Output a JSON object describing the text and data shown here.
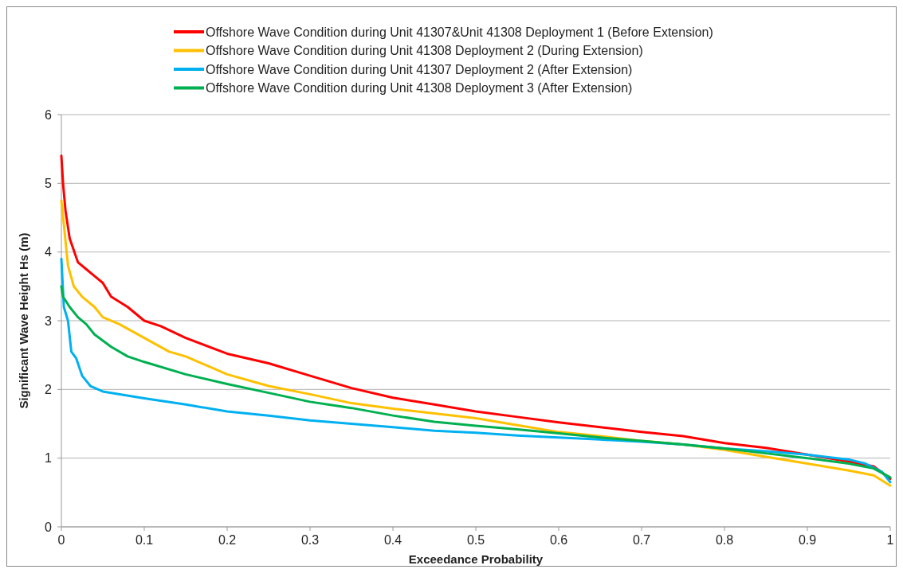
{
  "chart_data": {
    "type": "line",
    "xlabel": "Exceedance Probability",
    "ylabel": "Significant Wave Height Hs (m)",
    "xlim": [
      0,
      1
    ],
    "xticks": [
      0,
      0.1,
      0.2,
      0.3,
      0.4,
      0.5,
      0.6,
      0.7,
      0.8,
      0.9,
      1
    ],
    "ylim": [
      0,
      6
    ],
    "yticks": [
      0,
      1,
      2,
      3,
      4,
      5,
      6
    ],
    "grid": "y",
    "legend": "top",
    "marker": "none",
    "line_style": "solid",
    "series": [
      {
        "name": "Offshore Wave Condition during Unit 41307&Unit 41308 Deployment 1 (Before Extension)",
        "color": "#ff0000",
        "x": [
          0,
          0.002,
          0.005,
          0.01,
          0.02,
          0.03,
          0.04,
          0.05,
          0.06,
          0.08,
          0.1,
          0.12,
          0.15,
          0.2,
          0.25,
          0.3,
          0.35,
          0.4,
          0.45,
          0.5,
          0.55,
          0.6,
          0.65,
          0.7,
          0.75,
          0.8,
          0.85,
          0.9,
          0.95,
          0.98,
          1
        ],
        "values": [
          5.4,
          5.0,
          4.6,
          4.2,
          3.85,
          3.75,
          3.65,
          3.55,
          3.35,
          3.2,
          3.0,
          2.92,
          2.75,
          2.52,
          2.38,
          2.2,
          2.02,
          1.88,
          1.78,
          1.68,
          1.6,
          1.52,
          1.45,
          1.38,
          1.32,
          1.22,
          1.15,
          1.05,
          0.95,
          0.88,
          0.7
        ]
      },
      {
        "name": "Offshore Wave Condition during Unit 41308 Deployment 2 (During Extension)",
        "color": "#ffc000",
        "x": [
          0,
          0.003,
          0.008,
          0.015,
          0.025,
          0.04,
          0.05,
          0.07,
          0.1,
          0.13,
          0.15,
          0.2,
          0.25,
          0.3,
          0.35,
          0.4,
          0.45,
          0.5,
          0.55,
          0.6,
          0.65,
          0.7,
          0.75,
          0.8,
          0.85,
          0.9,
          0.95,
          0.98,
          1
        ],
        "values": [
          4.75,
          4.4,
          3.8,
          3.5,
          3.35,
          3.2,
          3.05,
          2.95,
          2.75,
          2.55,
          2.48,
          2.22,
          2.05,
          1.93,
          1.8,
          1.72,
          1.65,
          1.58,
          1.48,
          1.38,
          1.32,
          1.25,
          1.2,
          1.12,
          1.02,
          0.92,
          0.82,
          0.75,
          0.6
        ]
      },
      {
        "name": "Offshore Wave Condition during Unit 41307 Deployment 2 (After Extension)",
        "color": "#00b0f0",
        "x": [
          0,
          0.003,
          0.008,
          0.012,
          0.018,
          0.025,
          0.035,
          0.05,
          0.1,
          0.15,
          0.2,
          0.25,
          0.3,
          0.35,
          0.4,
          0.45,
          0.5,
          0.55,
          0.6,
          0.65,
          0.7,
          0.75,
          0.8,
          0.85,
          0.9,
          0.95,
          0.97,
          0.99,
          1
        ],
        "values": [
          3.9,
          3.2,
          3.0,
          2.55,
          2.45,
          2.2,
          2.05,
          1.97,
          1.87,
          1.78,
          1.68,
          1.62,
          1.55,
          1.5,
          1.45,
          1.4,
          1.37,
          1.33,
          1.3,
          1.27,
          1.24,
          1.2,
          1.14,
          1.1,
          1.05,
          0.98,
          0.92,
          0.8,
          0.65
        ]
      },
      {
        "name": "Offshore Wave Condition during Unit 41308 Deployment 3 (After Extension)",
        "color": "#00b050",
        "x": [
          0,
          0.002,
          0.01,
          0.02,
          0.03,
          0.04,
          0.06,
          0.08,
          0.1,
          0.15,
          0.2,
          0.25,
          0.3,
          0.35,
          0.4,
          0.45,
          0.5,
          0.55,
          0.6,
          0.65,
          0.7,
          0.75,
          0.8,
          0.85,
          0.9,
          0.95,
          0.98,
          1
        ],
        "values": [
          3.5,
          3.35,
          3.2,
          3.05,
          2.95,
          2.8,
          2.62,
          2.48,
          2.4,
          2.22,
          2.08,
          1.95,
          1.82,
          1.73,
          1.62,
          1.53,
          1.47,
          1.42,
          1.36,
          1.3,
          1.25,
          1.2,
          1.14,
          1.07,
          1.0,
          0.92,
          0.85,
          0.72
        ]
      }
    ]
  }
}
